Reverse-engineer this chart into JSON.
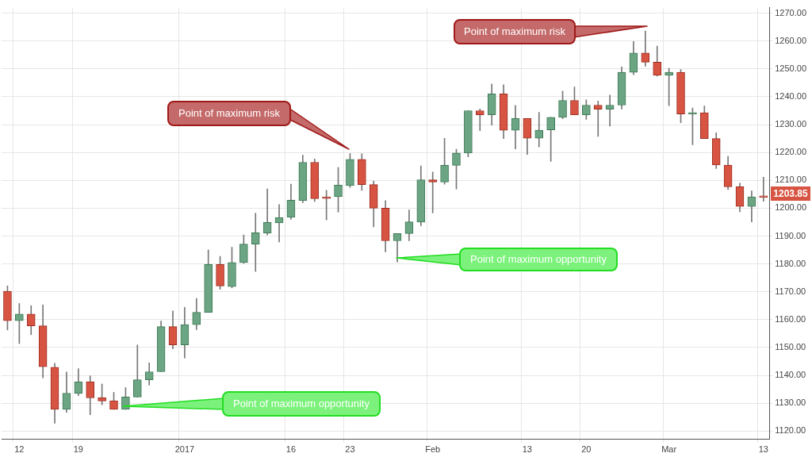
{
  "chart_data": {
    "type": "candlestick",
    "categories": [
      null,
      "12",
      null,
      null,
      null,
      null,
      "19",
      null,
      null,
      null,
      null,
      null,
      null,
      null,
      null,
      "2017",
      null,
      null,
      null,
      null,
      null,
      null,
      null,
      null,
      "16",
      null,
      null,
      null,
      null,
      "23",
      null,
      null,
      null,
      null,
      null,
      null,
      "Feb",
      null,
      null,
      null,
      null,
      null,
      null,
      null,
      "13",
      null,
      null,
      null,
      null,
      "20",
      null,
      null,
      null,
      null,
      null,
      null,
      "Mar",
      null,
      null,
      null,
      null,
      null,
      null,
      null,
      "13"
    ],
    "ohlc": [
      [
        1170.2,
        1172.1,
        1156.3,
        1159.6
      ],
      [
        1159.6,
        1165.8,
        1151.4,
        1162.0
      ],
      [
        1162.0,
        1165.0,
        1154.6,
        1157.8
      ],
      [
        1157.8,
        1165.3,
        1139.1,
        1143.1
      ],
      [
        1142.9,
        1144.3,
        1122.8,
        1127.8
      ],
      [
        1127.8,
        1141.2,
        1126.7,
        1133.6
      ],
      [
        1133.5,
        1142.4,
        1132.7,
        1137.7
      ],
      [
        1137.7,
        1139.8,
        1125.9,
        1131.9
      ],
      [
        1132.0,
        1136.9,
        1129.4,
        1130.8
      ],
      [
        1130.9,
        1133.9,
        1127.8,
        1127.8
      ],
      [
        1127.8,
        1135.6,
        1127.8,
        1132.2
      ],
      [
        1132.2,
        1150.9,
        1132.2,
        1138.4
      ],
      [
        1138.4,
        1144.5,
        1136.5,
        1141.3
      ],
      [
        1141.3,
        1159.5,
        1141.3,
        1157.5
      ],
      [
        1157.5,
        1163.1,
        1149.5,
        1150.9
      ],
      [
        1150.9,
        1164.4,
        1146.2,
        1158.2
      ],
      [
        1158.2,
        1167.6,
        1156.4,
        1162.6
      ],
      [
        1162.6,
        1185.0,
        1162.6,
        1179.8
      ],
      [
        1179.8,
        1182.7,
        1170.9,
        1172.1
      ],
      [
        1171.9,
        1186.0,
        1171.4,
        1180.5
      ],
      [
        1180.5,
        1190.4,
        1180.2,
        1187.1
      ],
      [
        1187.1,
        1198.2,
        1177.3,
        1191.2
      ],
      [
        1191.1,
        1206.9,
        1190.4,
        1194.9
      ],
      [
        1194.7,
        1201.3,
        1187.9,
        1196.7
      ],
      [
        1196.7,
        1208.6,
        1196.0,
        1202.9
      ],
      [
        1202.7,
        1219.0,
        1202.0,
        1216.5
      ],
      [
        1216.5,
        1217.7,
        1202.4,
        1203.4
      ],
      [
        1204.1,
        1206.4,
        1195.8,
        1203.5
      ],
      [
        1204.1,
        1214.6,
        1198.6,
        1208.3
      ],
      [
        1208.1,
        1219.6,
        1207.5,
        1217.5
      ],
      [
        1217.5,
        1219.5,
        1206.4,
        1208.5
      ],
      [
        1208.5,
        1209.7,
        1193.3,
        1200.0
      ],
      [
        1200.0,
        1202.7,
        1184.3,
        1188.3
      ],
      [
        1188.3,
        1190.9,
        1180.7,
        1190.9
      ],
      [
        1190.9,
        1199.4,
        1188.3,
        1195.1
      ],
      [
        1195.0,
        1215.2,
        1193.7,
        1210.2
      ],
      [
        1210.2,
        1213.0,
        1198.3,
        1209.4
      ],
      [
        1209.4,
        1225.1,
        1208.6,
        1215.4
      ],
      [
        1215.4,
        1221.2,
        1206.9,
        1219.8
      ],
      [
        1219.8,
        1235.0,
        1218.4,
        1235.0
      ],
      [
        1235.0,
        1235.6,
        1227.8,
        1233.5
      ],
      [
        1233.5,
        1244.6,
        1229.8,
        1241.0
      ],
      [
        1241.0,
        1244.3,
        1225.0,
        1228.0
      ],
      [
        1228.0,
        1236.9,
        1221.3,
        1232.2
      ],
      [
        1232.2,
        1232.2,
        1219.3,
        1225.1
      ],
      [
        1225.1,
        1234.4,
        1222.0,
        1228.0
      ],
      [
        1228.1,
        1232.6,
        1216.8,
        1232.6
      ],
      [
        1232.6,
        1242.0,
        1232.1,
        1238.7
      ],
      [
        1238.7,
        1243.5,
        1233.5,
        1233.5
      ],
      [
        1233.5,
        1238.9,
        1231.9,
        1237.0
      ],
      [
        1237.0,
        1238.5,
        1225.8,
        1235.5
      ],
      [
        1235.5,
        1240.6,
        1229.5,
        1237.0
      ],
      [
        1237.0,
        1250.7,
        1235.6,
        1248.8
      ],
      [
        1248.8,
        1259.8,
        1247.9,
        1255.7
      ],
      [
        1255.7,
        1263.6,
        1251.0,
        1252.4
      ],
      [
        1252.4,
        1258.2,
        1247.4,
        1247.7
      ],
      [
        1247.7,
        1250.2,
        1236.8,
        1248.8
      ],
      [
        1248.8,
        1249.8,
        1230.7,
        1233.8
      ],
      [
        1233.8,
        1236.0,
        1222.8,
        1234.3
      ],
      [
        1234.3,
        1236.7,
        1225.0,
        1225.0
      ],
      [
        1225.0,
        1227.1,
        1214.2,
        1215.5
      ],
      [
        1215.5,
        1218.6,
        1206.7,
        1207.7
      ],
      [
        1207.7,
        1209.0,
        1198.7,
        1200.6
      ],
      [
        1200.6,
        1206.2,
        1195.1,
        1204.1
      ],
      [
        1204.1,
        1211.1,
        1202.5,
        1203.85
      ]
    ],
    "ylim": [
      1117,
      1272
    ],
    "yticks": [
      {
        "value": 1120,
        "label": "1120.00"
      },
      {
        "value": 1130,
        "label": "1130.00"
      },
      {
        "value": 1140,
        "label": "1140.00"
      },
      {
        "value": 1150,
        "label": "1150.00"
      },
      {
        "value": 1160,
        "label": "1160.00"
      },
      {
        "value": 1170,
        "label": "1170.00"
      },
      {
        "value": 1180,
        "label": "1180.00"
      },
      {
        "value": 1190,
        "label": "1190.00"
      },
      {
        "value": 1200,
        "label": "1200.00"
      },
      {
        "value": 1210,
        "label": "1210.00"
      },
      {
        "value": 1220,
        "label": "1220.00"
      },
      {
        "value": 1230,
        "label": "1230.00"
      },
      {
        "value": 1240,
        "label": "1240.00"
      },
      {
        "value": 1250,
        "label": "1250.00"
      },
      {
        "value": 1260,
        "label": "1260.00"
      },
      {
        "value": 1270,
        "label": "1270.00"
      }
    ],
    "grid": true,
    "annotations": [
      "Point of maximum risk",
      "Point of maximum risk",
      "Point of maximum opportunity",
      "Point of maximum opportunity",
      "1203.85"
    ]
  }
}
